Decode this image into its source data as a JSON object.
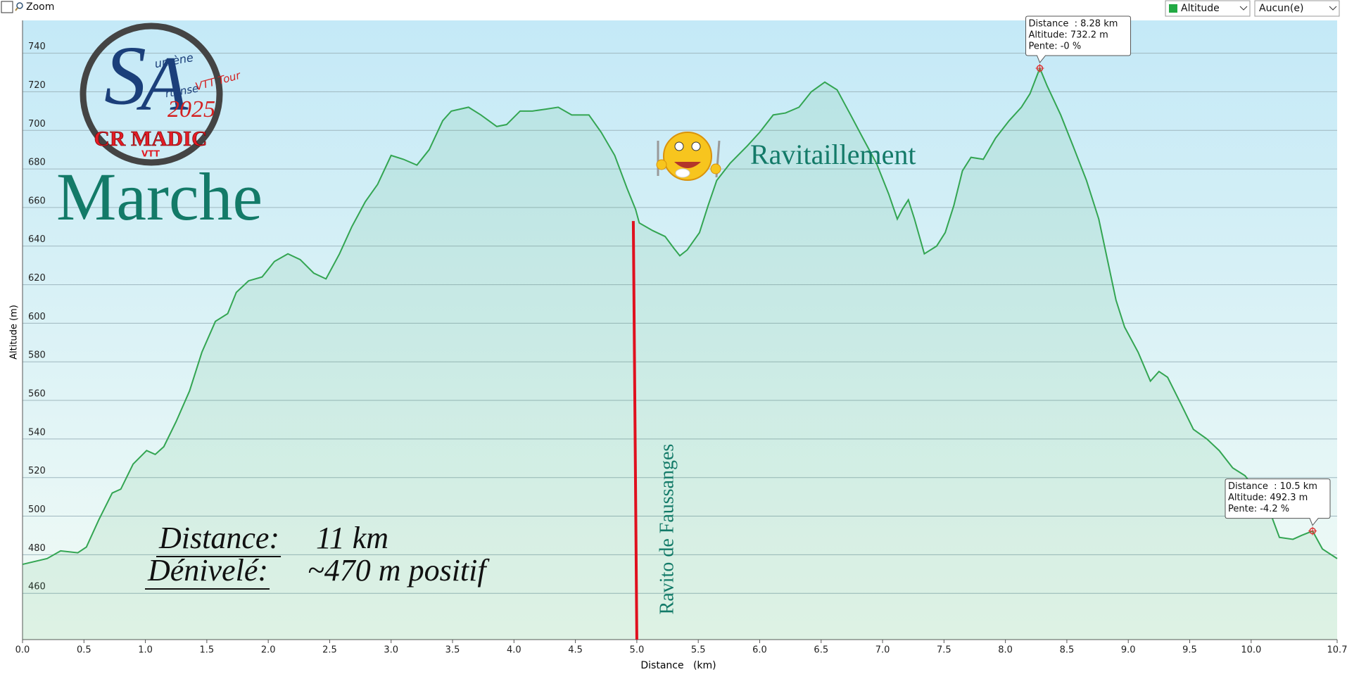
{
  "toolbar": {
    "zoom": "Zoom",
    "select_2": "Aucun(e)"
  },
  "overlay": {
    "heading": "Marche",
    "stats": [
      {
        "label": "Distance:",
        "value": "11 km"
      },
      {
        "label": "Dénivelé:",
        "value": "~470 m positif"
      }
    ],
    "ravito_title": "Ravitaillement",
    "logo": {
      "s": "S",
      "umene": "umène",
      "a": "A",
      "rtense": "rtense",
      "tour": "VTT Tour",
      "year": "2025",
      "club": "CR MADIC",
      "vtt": "VTT"
    }
  },
  "chart_data": {
    "type": "area",
    "x_label": "Distance   (km)",
    "y_label": "Altitude (m)",
    "x": [
      0.0,
      0.2,
      0.31,
      0.45,
      0.52,
      0.62,
      0.73,
      0.8,
      0.9,
      1.01,
      1.08,
      1.15,
      1.25,
      1.36,
      1.46,
      1.57,
      1.67,
      1.74,
      1.84,
      1.95,
      2.05,
      2.16,
      2.26,
      2.37,
      2.47,
      2.58,
      2.68,
      2.79,
      2.89,
      3.0,
      3.1,
      3.21,
      3.31,
      3.42,
      3.49,
      3.56,
      3.63,
      3.73,
      3.86,
      3.94,
      4.05,
      4.15,
      4.26,
      4.36,
      4.47,
      4.61,
      4.71,
      4.82,
      4.92,
      4.99,
      5.02,
      5.13,
      5.23,
      5.3,
      5.35,
      5.41,
      5.51,
      5.58,
      5.65,
      5.76,
      5.9,
      6.0,
      6.11,
      6.21,
      6.32,
      6.42,
      6.53,
      6.63,
      6.74,
      6.84,
      6.95,
      7.05,
      7.12,
      7.16,
      7.21,
      7.26,
      7.34,
      7.44,
      7.51,
      7.58,
      7.65,
      7.72,
      7.82,
      7.92,
      8.03,
      8.13,
      8.2,
      8.28,
      8.34,
      8.45,
      8.55,
      8.66,
      8.76,
      8.9,
      8.97,
      9.08,
      9.18,
      9.25,
      9.32,
      9.43,
      9.53,
      9.64,
      9.74,
      9.85,
      9.95,
      10.06,
      10.16,
      10.23,
      10.34,
      10.41,
      10.5,
      10.58,
      10.7
    ],
    "series": [
      {
        "name": "Altitude",
        "color": "#33a552",
        "values": [
          475,
          478,
          482,
          481,
          484,
          498,
          512,
          514,
          527,
          534,
          532,
          536,
          549,
          565,
          585,
          601,
          605,
          616,
          622,
          624,
          632,
          636,
          633,
          626,
          623,
          636,
          650,
          663,
          672,
          687,
          685,
          682,
          690,
          705,
          710,
          711,
          712,
          708,
          702,
          703,
          710,
          710,
          711,
          712,
          708,
          708,
          699,
          687,
          670,
          659,
          652,
          648,
          645,
          639,
          635,
          638,
          647,
          661,
          674,
          683,
          692,
          699,
          708,
          709,
          712,
          720,
          725,
          721,
          708,
          696,
          683,
          667,
          654,
          659,
          664,
          654,
          636,
          640,
          647,
          661,
          679,
          686,
          685,
          696,
          705,
          712,
          719,
          732.2,
          723,
          708,
          692,
          674,
          654,
          612,
          598,
          585,
          570,
          575,
          572,
          558,
          545,
          540,
          534,
          525,
          521,
          512,
          501,
          489,
          488,
          490,
          492.3,
          483,
          478
        ]
      }
    ],
    "xlim": [
      0,
      10.7
    ],
    "ylim": [
      436,
      757
    ],
    "xticks": [
      {
        "value": 0,
        "label": "0.0"
      },
      0.5,
      {
        "value": 1,
        "label": "1.0"
      },
      1.5,
      {
        "value": 2,
        "label": "2.0"
      },
      2.5,
      {
        "value": 3,
        "label": "3.0"
      },
      3.5,
      {
        "value": 4,
        "label": "4.0"
      },
      4.5,
      {
        "value": 5,
        "label": "5.0"
      },
      5.5,
      {
        "value": 6,
        "label": "6.0"
      },
      6.5,
      {
        "value": 7,
        "label": "7.0"
      },
      7.5,
      {
        "value": 8,
        "label": "8.0"
      },
      8.5,
      {
        "value": 9,
        "label": "9.0"
      },
      9.5,
      {
        "value": 10,
        "label": "10.0"
      },
      10.7
    ],
    "yticks": [
      460,
      480,
      500,
      520,
      540,
      560,
      580,
      600,
      620,
      640,
      660,
      680,
      700,
      720,
      740
    ],
    "grid": true,
    "markers": [
      {
        "x": 8.28,
        "y": 732.2,
        "lines": [
          "Distance  : 8.28 km",
          "Altitude: 732.2 m",
          "Pente: -0 %"
        ]
      },
      {
        "x": 10.5,
        "y": 492.3,
        "lines": [
          "Distance  : 10.5 km",
          "Altitude: 492.3 m",
          "Pente: -4.2 %"
        ]
      }
    ],
    "vline": {
      "x": 5.0,
      "y": 653,
      "color": "#e0101e",
      "label": "Ravito de Faussanges"
    }
  }
}
